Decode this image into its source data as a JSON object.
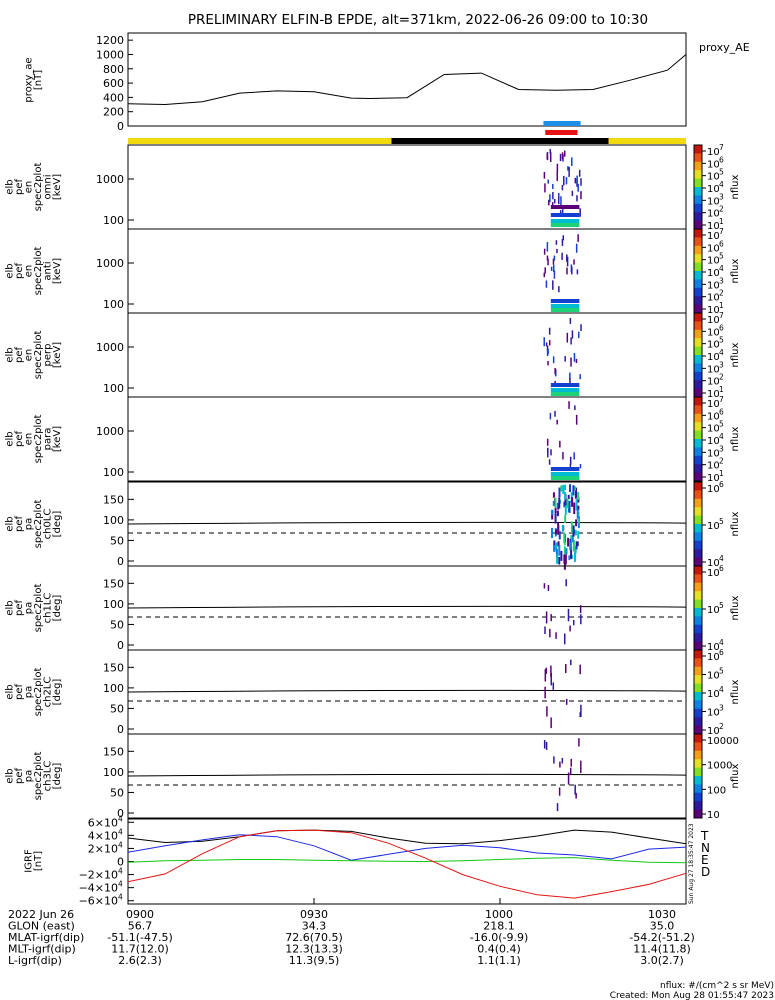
{
  "title": "PRELIMINARY ELFIN-B EPDE, alt=371km, 2022-06-26 09:00 to 10:30",
  "proxy_panel": {
    "ylabel_lines": [
      "proxy_ae",
      "[nT]"
    ],
    "legend": "proxy_AE",
    "yticks": [
      "1200",
      "1000",
      "800",
      "600",
      "400",
      "200",
      "0"
    ],
    "ytick_values": [
      1200,
      1000,
      800,
      600,
      400,
      200,
      0
    ],
    "ylim": [
      0,
      1300
    ],
    "series_x": [
      0,
      6,
      12,
      18,
      24,
      30,
      36,
      39,
      45,
      51,
      57,
      63,
      69,
      75,
      81,
      87,
      90
    ],
    "series_y": [
      310,
      300,
      340,
      460,
      490,
      480,
      390,
      385,
      395,
      720,
      740,
      510,
      500,
      510,
      640,
      780,
      1000
    ],
    "color": "#000000"
  },
  "status_bar": {
    "colors": {
      "day": "#f2d90d",
      "shadow": "#000000"
    },
    "segments": [
      {
        "state": "day",
        "start_min": 0,
        "end_min": 42.5
      },
      {
        "state": "shadow",
        "start_min": 42.5,
        "end_min": 77.5
      },
      {
        "state": "day",
        "start_min": 77.5,
        "end_min": 90
      }
    ],
    "science_zones": [
      {
        "color": "#1e8fe6",
        "start_min": 67,
        "end_min": 73
      },
      {
        "color": "#e61414",
        "start_min": 67.3,
        "end_min": 72.5
      }
    ]
  },
  "energy_panels": [
    {
      "id": "omni",
      "ylabel_lines": [
        "elb",
        "pef",
        "en",
        "spec2plot",
        "omni",
        "[keV]"
      ],
      "yticks": [
        "1000",
        "100"
      ],
      "cb_ticks": [
        "10",
        "10",
        "10",
        "10",
        "10",
        "10",
        "10"
      ],
      "cb_exps": [
        "7",
        "6",
        "5",
        "4",
        "3",
        "2",
        "1"
      ],
      "cb_label": "nflux"
    },
    {
      "id": "anti",
      "ylabel_lines": [
        "elb",
        "pef",
        "en",
        "spec2plot",
        "anti",
        "[keV]"
      ],
      "yticks": [
        "1000",
        "100"
      ],
      "cb_ticks": [
        "10",
        "10",
        "10",
        "10",
        "10",
        "10",
        "10"
      ],
      "cb_exps": [
        "7",
        "6",
        "5",
        "4",
        "3",
        "2",
        "1"
      ],
      "cb_label": "nflux"
    },
    {
      "id": "perp",
      "ylabel_lines": [
        "elb",
        "pef",
        "en",
        "spec2plot",
        "perp",
        "[keV]"
      ],
      "yticks": [
        "1000",
        "100"
      ],
      "cb_ticks": [
        "10",
        "10",
        "10",
        "10",
        "10",
        "10",
        "10"
      ],
      "cb_exps": [
        "7",
        "6",
        "5",
        "4",
        "3",
        "2",
        "1"
      ],
      "cb_label": "nflux"
    },
    {
      "id": "para",
      "ylabel_lines": [
        "elb",
        "pef",
        "en",
        "spec2plot",
        "para",
        "[keV]"
      ],
      "yticks": [
        "1000",
        "100"
      ],
      "cb_ticks": [
        "10",
        "10",
        "10",
        "10",
        "10",
        "10",
        "10"
      ],
      "cb_exps": [
        "7",
        "6",
        "5",
        "4",
        "3",
        "2",
        "1"
      ],
      "cb_label": "nflux"
    }
  ],
  "pa_panels": [
    {
      "id": "ch0LC",
      "ylabel_lines": [
        "elb",
        "pef",
        "pa",
        "spec2plot",
        "ch0LC",
        "[deg]"
      ],
      "yticks": [
        "150",
        "100",
        "50",
        "0"
      ],
      "cb_ticks": [
        "10",
        "10",
        "10"
      ],
      "cb_exps": [
        "6",
        "5",
        "4"
      ],
      "cb_label": "nflux"
    },
    {
      "id": "ch1LC",
      "ylabel_lines": [
        "elb",
        "pef",
        "pa",
        "spec2plot",
        "ch1LC",
        "[deg]"
      ],
      "yticks": [
        "150",
        "100",
        "50",
        "0"
      ],
      "cb_ticks": [
        "10",
        "10",
        "10"
      ],
      "cb_exps": [
        "6",
        "5",
        "4"
      ],
      "cb_label": "nflux"
    },
    {
      "id": "ch2LC",
      "ylabel_lines": [
        "elb",
        "pef",
        "pa",
        "spec2plot",
        "ch2LC",
        "[deg]"
      ],
      "yticks": [
        "150",
        "100",
        "50",
        "0"
      ],
      "cb_ticks": [
        "10",
        "10",
        "10",
        "10",
        "10"
      ],
      "cb_exps": [
        "6",
        "5",
        "4",
        "3",
        "2"
      ],
      "cb_label": "nflux"
    },
    {
      "id": "ch3LC",
      "ylabel_lines": [
        "elb",
        "pef",
        "pa",
        "spec2plot",
        "ch3LC",
        "[deg]"
      ],
      "yticks": [
        "150",
        "100",
        "50",
        "0"
      ],
      "cb_ticks": [
        "10000",
        "1000",
        "100",
        "10"
      ],
      "cb_exps": [
        "",
        "",
        "",
        ""
      ],
      "cb_label": "nflux"
    }
  ],
  "pa_line_colors": {
    "solid": "#000000",
    "dashed": "#000000"
  },
  "bfield_panel": {
    "ylabel_lines": [
      "IGRF",
      "[nT]"
    ],
    "yticks": [
      "6×10",
      "4×10",
      "2×10",
      "0",
      "−2×10",
      "−4×10",
      "−6×10"
    ],
    "ytick_exps": [
      "4",
      "4",
      "4",
      "",
      "4",
      "4",
      "4"
    ],
    "ytick_values": [
      60000,
      40000,
      20000,
      0,
      -20000,
      -40000,
      -60000
    ],
    "ylim": [
      -65000,
      65000
    ],
    "components": [
      {
        "label": "T",
        "color": "#000000"
      },
      {
        "label": "N",
        "color": "#1e28e6"
      },
      {
        "label": "E",
        "color": "#12c812"
      },
      {
        "label": "D",
        "color": "#e61414"
      }
    ],
    "stamp": "Sun Aug 27 18:35:47 2023",
    "chart_data": {
      "type": "line",
      "x": [
        0,
        6,
        12,
        18,
        24,
        30,
        36,
        42,
        48,
        54,
        60,
        66,
        72,
        78,
        84,
        90
      ],
      "series": [
        {
          "name": "T",
          "values": [
            36000,
            29000,
            31000,
            38000,
            47000,
            48000,
            46000,
            36000,
            28000,
            27000,
            32000,
            39000,
            48000,
            45000,
            36000,
            27000
          ]
        },
        {
          "name": "N",
          "values": [
            14000,
            24000,
            33000,
            41000,
            38000,
            24000,
            2000,
            11000,
            20000,
            25000,
            21000,
            13000,
            10000,
            4000,
            19000,
            22000
          ]
        },
        {
          "name": "E",
          "values": [
            -1000,
            1000,
            2000,
            3000,
            3000,
            2000,
            1000,
            500,
            0,
            1000,
            3000,
            5000,
            6000,
            2000,
            -1000,
            -2000
          ]
        },
        {
          "name": "D",
          "values": [
            -31000,
            -19000,
            12000,
            38000,
            47000,
            48000,
            44000,
            28000,
            5000,
            -20000,
            -38000,
            -51000,
            -56000,
            -46000,
            -35000,
            -18000
          ]
        }
      ]
    }
  },
  "time_axis": {
    "ticks": [
      "0900",
      "0930",
      "1000",
      "1030"
    ],
    "tick_minutes": [
      0,
      30,
      60,
      90
    ]
  },
  "ephemeris": {
    "rows": [
      {
        "label": "2022 Jun 26",
        "values": [
          "0900",
          "0930",
          "1000",
          "1030"
        ]
      },
      {
        "label": "GLON (east)",
        "values": [
          "56.7",
          "34.3",
          "218.1",
          "35.0"
        ]
      },
      {
        "label": "MLAT-igrf(dip)",
        "values": [
          "-51.1(-47.5)",
          "72.6(70.5)",
          "-16.0(-9.9)",
          "-54.2(-51.2)"
        ]
      },
      {
        "label": "MLT-igrf(dip)",
        "values": [
          "11.7(12.0)",
          "12.3(13.3)",
          "0.4(0.4)",
          "11.4(11.8)"
        ]
      },
      {
        "label": "L-igrf(dip)",
        "values": [
          "2.6(2.3)",
          "11.3(9.5)",
          "1.1(1.1)",
          "3.0(2.7)"
        ]
      }
    ]
  },
  "footer": {
    "units": "nflux: #/(cm^2 s sr MeV)",
    "created": "Created: Mon Aug 28 01:55:47 2023"
  },
  "colormap": [
    "#ffffff",
    "#5a007a",
    "#2d1aa0",
    "#1440d2",
    "#0a82e6",
    "#00bcd2",
    "#1ed278",
    "#82e11e",
    "#e6e11e",
    "#f5a014",
    "#eb5014",
    "#c8140a"
  ]
}
